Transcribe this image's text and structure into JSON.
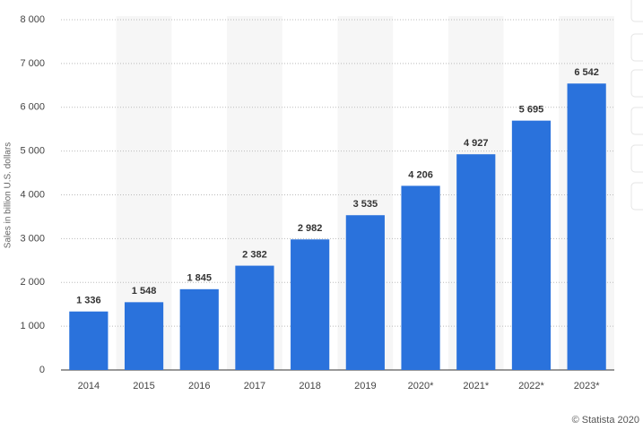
{
  "chart_data": {
    "type": "bar",
    "y_label": "Sales in billion U.S. dollars",
    "categories": [
      "2014",
      "2015",
      "2016",
      "2017",
      "2018",
      "2019",
      "2020*",
      "2021*",
      "2022*",
      "2023*"
    ],
    "values": [
      1336,
      1548,
      1845,
      2382,
      2982,
      3535,
      4206,
      4927,
      5695,
      6542
    ],
    "value_labels": [
      "1 336",
      "1 548",
      "1 845",
      "2 382",
      "2 982",
      "3 535",
      "4 206",
      "4 927",
      "5 695",
      "6 542"
    ],
    "color": "#2a72dc",
    "ylim": [
      0,
      8000
    ],
    "yticks": [
      0,
      {
        "value": 1000,
        "label": "1 000"
      },
      {
        "value": 2000,
        "label": "2 000"
      },
      {
        "value": 3000,
        "label": "3 000"
      },
      {
        "value": 4000,
        "label": "4 000"
      },
      {
        "value": 5000,
        "label": "5 000"
      },
      {
        "value": 6000,
        "label": "6 000"
      },
      {
        "value": 7000,
        "label": "7 000"
      },
      {
        "value": 8000,
        "label": "8 000"
      }
    ],
    "grid": true,
    "source": "© Statista 2020"
  }
}
